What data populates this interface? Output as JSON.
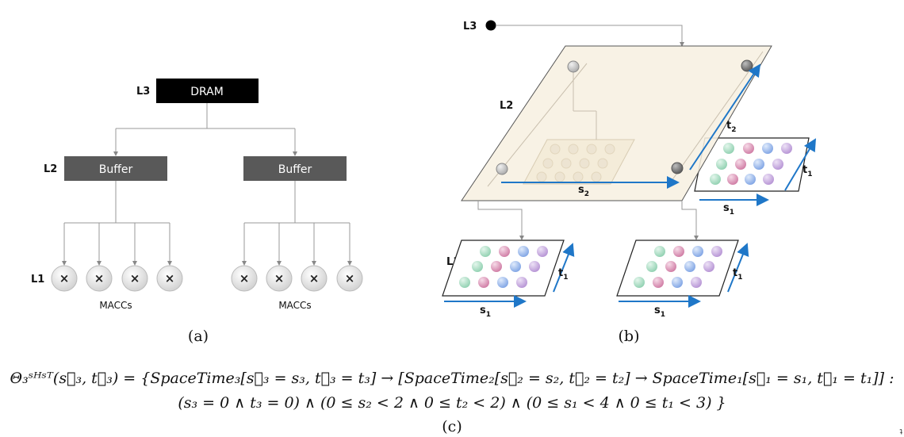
{
  "panel_a": {
    "level_labels": {
      "l3": "L3",
      "l2": "L2",
      "l1": "L1"
    },
    "dram_label": "DRAM",
    "buffer_labels": [
      "Buffer",
      "Buffer"
    ],
    "macc_symbol": "×",
    "macc_group_labels": [
      "MACCs",
      "MACCs"
    ],
    "caption": "(a)"
  },
  "panel_b": {
    "level_labels": {
      "l3": "L3",
      "l2": "L2",
      "l1": "L1"
    },
    "axis_labels": {
      "s2": "s",
      "s2_sub": "2",
      "t2": "t",
      "t2_sub": "2",
      "s1": "s",
      "s1_sub": "1",
      "t1": "t",
      "t1_sub": "1"
    },
    "caption": "(b)"
  },
  "formula": {
    "line1": "Θ₃ˢᴴˢᵀ(s⃗₃, t⃗₃) = {SpaceTime₃[s⃗₃ = s₃, t⃗₃ = t₃] → [SpaceTime₂[s⃗₂ = s₂, t⃗₂ = t₂] → SpaceTime₁[s⃗₁ = s₁, t⃗₁ = t₁]] :",
    "line2": "(s₃ = 0 ∧ t₃ = 0) ∧ (0 ≤ s₂ < 2 ∧ 0 ≤ t₂ < 2) ∧ (0 ≤ s₁ < 4 ∧ 0 ≤ t₁ < 3) }",
    "caption": "(c)"
  },
  "corner_mark": "ʇ",
  "colors": {
    "dram_box": "#000000",
    "buffer_box": "#595959",
    "plane_fill": "#f7f0e1",
    "arrow_blue": "#1f77c8",
    "pe_green": "#9fd8bb",
    "pe_pink": "#d88bb0",
    "pe_blue": "#8fb1ea",
    "pe_purple": "#c3a2dc"
  }
}
